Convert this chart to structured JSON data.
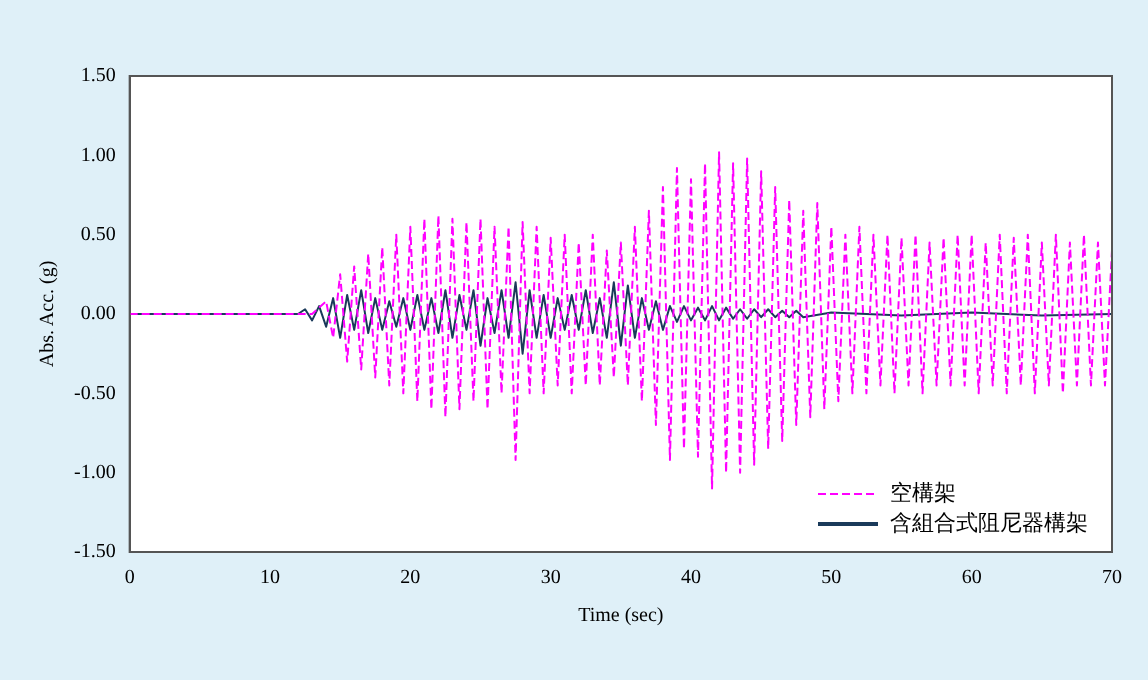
{
  "chart_data": {
    "type": "line",
    "xlabel": "Time (sec)",
    "ylabel": "Abs. Acc. (g)",
    "xlim": [
      0,
      70
    ],
    "xticks": [
      0,
      10,
      20,
      30,
      40,
      50,
      60,
      70
    ],
    "ylim": [
      -1.5,
      1.5
    ],
    "yticks": [
      {
        "value": -1.5,
        "label": "-1.50"
      },
      {
        "value": -1,
        "label": "-1.00"
      },
      {
        "value": -0.5,
        "label": "-0.50"
      },
      {
        "value": 0,
        "label": "0.00"
      },
      {
        "value": 0.5,
        "label": "0.50"
      },
      {
        "value": 1,
        "label": "1.00"
      },
      {
        "value": 1.5,
        "label": "1.50"
      }
    ],
    "grid": false,
    "legend": "bottom right",
    "marker": "none",
    "series": [
      {
        "name": "空構架",
        "color": "#ff00ff",
        "line_style": "dashed",
        "x": [
          0,
          12,
          13,
          14,
          14.5,
          15,
          15.5,
          16,
          16.5,
          17,
          17.5,
          18,
          18.5,
          19,
          19.5,
          20,
          20.5,
          21,
          21.5,
          22,
          22.5,
          23,
          23.5,
          24,
          24.5,
          25,
          25.5,
          26,
          26.5,
          27,
          27.5,
          28,
          28.5,
          29,
          29.5,
          30,
          30.5,
          31,
          31.5,
          32,
          32.5,
          33,
          33.5,
          34,
          34.5,
          35,
          35.5,
          36,
          36.5,
          37,
          37.5,
          38,
          38.5,
          39,
          39.5,
          40,
          40.5,
          41,
          41.5,
          42,
          42.5,
          43,
          43.5,
          44,
          44.5,
          45,
          45.5,
          46,
          46.5,
          47,
          47.5,
          48,
          48.5,
          49,
          49.5,
          50,
          50.5,
          51,
          51.5,
          52,
          52.5,
          53,
          53.5,
          54,
          54.5,
          55,
          55.5,
          56,
          56.5,
          57,
          57.5,
          58,
          58.5,
          59,
          59.5,
          60,
          60.5,
          61,
          61.5,
          62,
          62.5,
          63,
          63.5,
          64,
          64.5,
          65,
          65.5,
          66,
          66.5,
          67,
          67.5,
          68,
          68.5,
          69,
          69.5,
          70
        ],
        "values": [
          0,
          0,
          0,
          0.08,
          -0.15,
          0.25,
          -0.3,
          0.3,
          -0.35,
          0.38,
          -0.4,
          0.42,
          -0.45,
          0.5,
          -0.5,
          0.55,
          -0.55,
          0.6,
          -0.6,
          0.62,
          -0.65,
          0.6,
          -0.6,
          0.58,
          -0.55,
          0.6,
          -0.6,
          0.55,
          -0.5,
          0.55,
          -0.92,
          0.58,
          -0.5,
          0.55,
          -0.5,
          0.48,
          -0.45,
          0.5,
          -0.5,
          0.45,
          -0.45,
          0.5,
          -0.45,
          0.4,
          -0.4,
          0.45,
          -0.45,
          0.55,
          -0.55,
          0.65,
          -0.7,
          0.8,
          -0.92,
          0.92,
          -0.85,
          0.85,
          -0.9,
          0.95,
          -1.1,
          1.02,
          -1.0,
          0.95,
          -1.0,
          0.98,
          -0.95,
          0.9,
          -0.85,
          0.8,
          -0.8,
          0.72,
          -0.7,
          0.65,
          -0.65,
          0.7,
          -0.6,
          0.55,
          -0.55,
          0.5,
          -0.5,
          0.55,
          -0.5,
          0.5,
          -0.45,
          0.5,
          -0.5,
          0.48,
          -0.45,
          0.5,
          -0.5,
          0.45,
          -0.45,
          0.48,
          -0.45,
          0.5,
          -0.45,
          0.5,
          -0.5,
          0.45,
          -0.45,
          0.5,
          -0.5,
          0.48,
          -0.45,
          0.5,
          -0.5,
          0.45,
          -0.45,
          0.5,
          -0.5,
          0.45,
          -0.45,
          0.5,
          -0.45,
          0.45,
          -0.45,
          0.4
        ]
      },
      {
        "name": "含組合式阻尼器構架",
        "color": "#1a3a5a",
        "line_style": "solid",
        "x": [
          0,
          12,
          12.5,
          13,
          13.5,
          14,
          14.5,
          15,
          15.5,
          16,
          16.5,
          17,
          17.5,
          18,
          18.5,
          19,
          19.5,
          20,
          20.5,
          21,
          21.5,
          22,
          22.5,
          23,
          23.5,
          24,
          24.5,
          25,
          25.5,
          26,
          26.5,
          27,
          27.5,
          28,
          28.5,
          29,
          29.5,
          30,
          30.5,
          31,
          31.5,
          32,
          32.5,
          33,
          33.5,
          34,
          34.5,
          35,
          35.5,
          36,
          36.5,
          37,
          37.5,
          38,
          38.5,
          39,
          39.5,
          40,
          40.5,
          41,
          41.5,
          42,
          42.5,
          43,
          43.5,
          44,
          44.5,
          45,
          45.5,
          46,
          46.5,
          47,
          47.5,
          48,
          50,
          55,
          60,
          65,
          70
        ],
        "values": [
          0,
          0,
          0.03,
          -0.04,
          0.05,
          -0.08,
          0.1,
          -0.15,
          0.12,
          -0.1,
          0.15,
          -0.12,
          0.1,
          -0.1,
          0.08,
          -0.08,
          0.1,
          -0.1,
          0.12,
          -0.1,
          0.1,
          -0.12,
          0.15,
          -0.15,
          0.12,
          -0.1,
          0.15,
          -0.2,
          0.1,
          -0.12,
          0.15,
          -0.15,
          0.2,
          -0.25,
          0.15,
          -0.15,
          0.12,
          -0.15,
          0.1,
          -0.1,
          0.12,
          -0.1,
          0.15,
          -0.12,
          0.1,
          -0.15,
          0.2,
          -0.2,
          0.18,
          -0.15,
          0.1,
          -0.1,
          0.08,
          -0.1,
          0.05,
          -0.05,
          0.05,
          -0.04,
          0.04,
          -0.04,
          0.05,
          -0.04,
          0.04,
          -0.03,
          0.03,
          -0.03,
          0.03,
          -0.02,
          0.03,
          -0.02,
          0.02,
          -0.02,
          0.02,
          -0.02,
          0.01,
          -0.01,
          0.01,
          -0.01,
          0
        ]
      }
    ]
  }
}
